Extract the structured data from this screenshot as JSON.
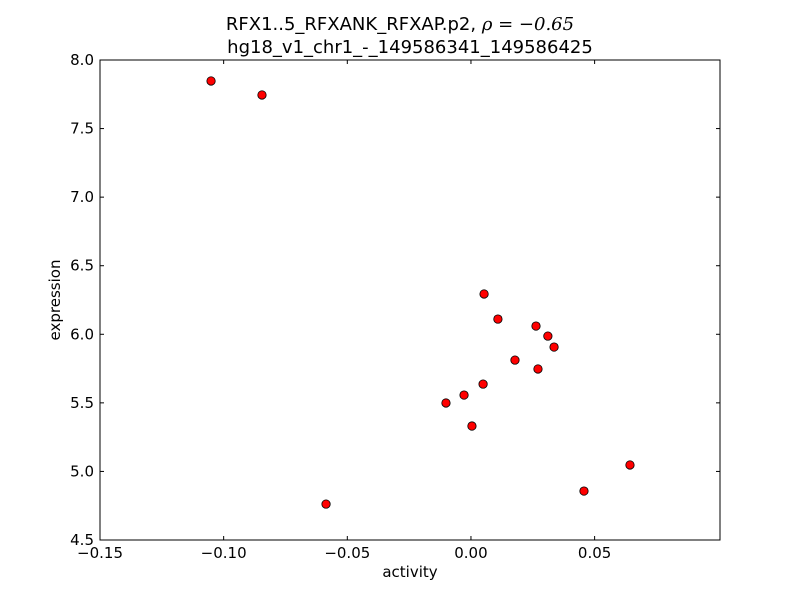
{
  "chart_data": {
    "type": "scatter",
    "title_line1": "RFX1..5_RFXANK_RFXAP.p2, ",
    "title_rho": "ρ = −0.65",
    "title_line2": "hg18_v1_chr1_-_149586341_149586425",
    "xlabel": "activity",
    "ylabel": "expression",
    "xlim": [
      -0.15,
      0.1007
    ],
    "ylim": [
      4.5,
      8.0
    ],
    "xticks": [
      -0.15,
      -0.1,
      -0.05,
      0.0,
      0.05
    ],
    "xtick_labels": [
      "−0.15",
      "−0.10",
      "−0.05",
      "0.00",
      "0.05"
    ],
    "yticks": [
      4.5,
      5.0,
      5.5,
      6.0,
      6.5,
      7.0,
      7.5,
      8.0
    ],
    "ytick_labels": [
      "4.5",
      "5.0",
      "5.5",
      "6.0",
      "6.5",
      "7.0",
      "7.5",
      "8.0"
    ],
    "marker_color": "#ff0000",
    "points": [
      {
        "x": -0.1051,
        "y": 7.847
      },
      {
        "x": -0.0845,
        "y": 7.745
      },
      {
        "x": -0.0586,
        "y": 4.762
      },
      {
        "x": -0.0101,
        "y": 5.499
      },
      {
        "x": -0.0028,
        "y": 5.557
      },
      {
        "x": 0.0004,
        "y": 5.331
      },
      {
        "x": 0.0049,
        "y": 5.637
      },
      {
        "x": 0.0053,
        "y": 6.294
      },
      {
        "x": 0.0109,
        "y": 6.111
      },
      {
        "x": 0.0178,
        "y": 5.812
      },
      {
        "x": 0.0263,
        "y": 6.06
      },
      {
        "x": 0.0271,
        "y": 5.747
      },
      {
        "x": 0.0311,
        "y": 5.987
      },
      {
        "x": 0.0336,
        "y": 5.907
      },
      {
        "x": 0.0457,
        "y": 4.857
      },
      {
        "x": 0.0643,
        "y": 5.047
      }
    ]
  }
}
